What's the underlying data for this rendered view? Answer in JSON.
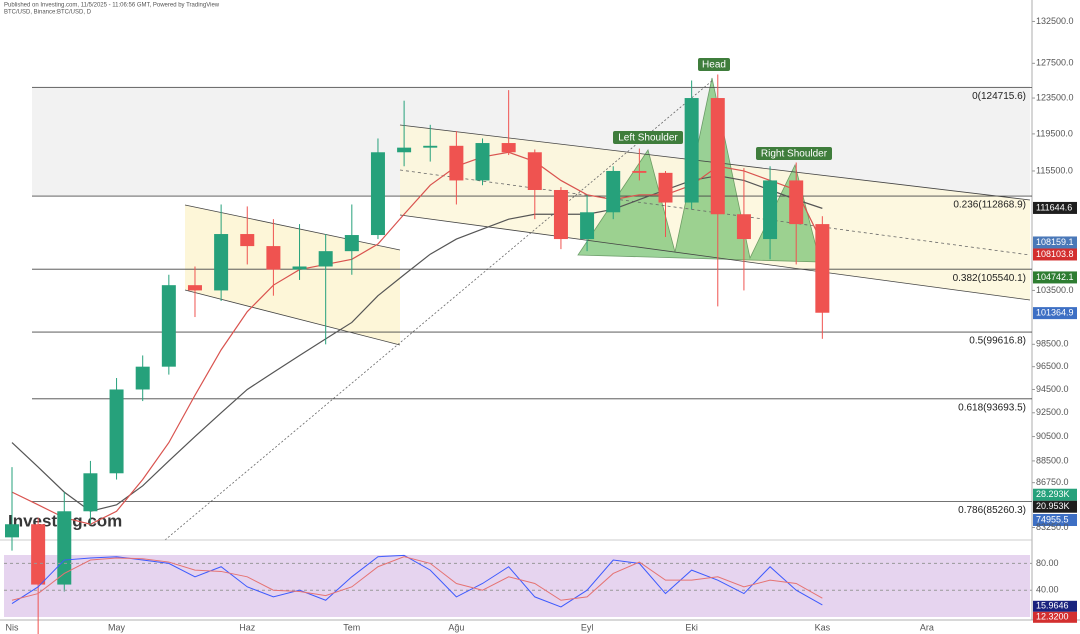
{
  "chart_data": {
    "type": "candlestick",
    "title": "Published on Investing.com, 11/5/2025 - 11:06:56 GMT, Powered by TradingView",
    "subtitle": "BTC/USD, Binance:BTC/USD, D",
    "watermark": "Investing.com",
    "log_scale": true,
    "categories": [
      "Nis",
      null,
      null,
      null,
      "May",
      null,
      null,
      null,
      null,
      "Haz",
      null,
      null,
      null,
      "Tem",
      null,
      null,
      null,
      "Ağu",
      null,
      null,
      null,
      null,
      "Eyl",
      null,
      null,
      null,
      "Eki",
      null,
      null,
      null,
      null,
      "Kas",
      null,
      null,
      null,
      "Ara"
    ],
    "open": [
      82500,
      83500,
      79000,
      84500,
      87500,
      94500,
      96500,
      104000,
      103500,
      109000,
      107800,
      105500,
      105800,
      107300,
      108900,
      117500,
      118000,
      118200,
      114500,
      118500,
      117500,
      113500,
      108500,
      111200,
      115500,
      115300,
      112200,
      123500,
      111000,
      108500,
      114500,
      110000,
      null,
      null,
      null,
      null
    ],
    "high": [
      88000,
      84000,
      86000,
      88500,
      95500,
      97500,
      105000,
      105800,
      112000,
      111800,
      110500,
      110000,
      109000,
      112000,
      119000,
      123200,
      120500,
      119800,
      119000,
      124400,
      117800,
      113800,
      113000,
      116000,
      117900,
      115500,
      125500,
      126200,
      115800,
      116000,
      116400,
      110800,
      null,
      null,
      null,
      null
    ],
    "low": [
      81500,
      74500,
      78500,
      83500,
      87000,
      93500,
      95800,
      101000,
      102500,
      106000,
      103000,
      104500,
      98500,
      105000,
      108500,
      116000,
      116500,
      112000,
      114000,
      117200,
      110500,
      107500,
      107300,
      110500,
      114500,
      108700,
      111500,
      102000,
      103500,
      106500,
      106000,
      99000,
      null,
      null,
      null,
      null
    ],
    "close": [
      83500,
      79000,
      84500,
      87500,
      94500,
      96500,
      104000,
      103500,
      109000,
      107800,
      105500,
      105800,
      107300,
      108900,
      117500,
      118000,
      118200,
      114500,
      118500,
      117500,
      113500,
      108500,
      111200,
      115500,
      115300,
      112200,
      123500,
      111000,
      108500,
      114500,
      110000,
      101400,
      null,
      null,
      null,
      null
    ],
    "up_color": "#26a17b",
    "down_color": "#ef5350",
    "moving_averages": [
      {
        "color": "#555555",
        "values": [
          90000,
          88000,
          86000,
          84500,
          85000,
          86500,
          88500,
          90500,
          92500,
          94500,
          96000,
          97500,
          99000,
          100500,
          103000,
          105000,
          107000,
          108500,
          109500,
          110500,
          111000,
          111000,
          111000,
          111500,
          112500,
          113500,
          114500,
          115000,
          114500,
          113500,
          112500,
          111600,
          null,
          null,
          null,
          null
        ]
      },
      {
        "color": "#d9534f",
        "values": [
          86000,
          85000,
          84000,
          83500,
          84500,
          87000,
          90000,
          94000,
          98000,
          101500,
          104000,
          105500,
          106000,
          106500,
          108000,
          111000,
          114000,
          116000,
          117000,
          117500,
          116500,
          114500,
          113000,
          112500,
          113000,
          113000,
          114000,
          116000,
          115500,
          114500,
          113500,
          108100,
          null,
          null,
          null,
          null
        ]
      }
    ],
    "ylim": [
      82300,
      133900
    ],
    "yticks": [
      {
        "value": 132500,
        "label": "132500.0"
      },
      {
        "value": 127500,
        "label": "127500.0"
      },
      {
        "value": 123500,
        "label": "123500.0"
      },
      {
        "value": 119500,
        "label": "119500.0"
      },
      {
        "value": 115500,
        "label": "115500.0"
      },
      {
        "value": 103500,
        "label": "103500.0"
      },
      {
        "value": 98500,
        "label": "98500.0"
      },
      {
        "value": 96500,
        "label": "96500.0"
      },
      {
        "value": 94500,
        "label": "94500.0"
      },
      {
        "value": 92500,
        "label": "92500.0"
      },
      {
        "value": 90500,
        "label": "90500.0"
      },
      {
        "value": 88500,
        "label": "88500.0"
      },
      {
        "value": 86750,
        "label": "86750.0"
      },
      {
        "value": 83250,
        "label": "83250.0"
      }
    ],
    "fib_levels": [
      {
        "value": 124715.6,
        "label": "0(124715.6)"
      },
      {
        "value": 112868.9,
        "label": "0.236(112868.9)"
      },
      {
        "value": 105540.1,
        "label": "0.382(105540.1)"
      },
      {
        "value": 99616.8,
        "label": "0.5(99616.8)"
      },
      {
        "value": 93693.5,
        "label": "0.618(93693.5)"
      },
      {
        "value": 85260.3,
        "label": "0.786(85260.3)"
      }
    ],
    "price_tags": [
      {
        "value": 111644.6,
        "label": "111644.6",
        "color": "#1e1e1e"
      },
      {
        "value": 108159.1,
        "label": "108159.1",
        "color": "#4a78b8"
      },
      {
        "value": 108103.8,
        "label": "108103.8",
        "color": "#d32f2f"
      },
      {
        "value": 104742.1,
        "label": "104742.1",
        "color": "#2e7d32"
      },
      {
        "value": 101364.9,
        "label": "101364.9",
        "color": "#3d6fc4"
      }
    ],
    "volume_ylim": [
      0,
      50
    ],
    "volume_tags": [
      {
        "value": 28.293,
        "label": "28.293K",
        "color": "#26a17b"
      },
      {
        "value": 20.953,
        "label": "20.953K",
        "color": "#1e1e1e"
      }
    ],
    "extra_tag": "74955.5",
    "annotations": [
      "Head",
      "Left Shoulder",
      "Right Shoulder"
    ],
    "stochastic": {
      "ylim": [
        0,
        100
      ],
      "yticks": [
        {
          "value": 80,
          "label": "80.00"
        },
        {
          "value": 40,
          "label": "40.00"
        }
      ],
      "k": [
        20,
        45,
        85,
        88,
        90,
        85,
        80,
        60,
        75,
        45,
        30,
        40,
        25,
        60,
        90,
        92,
        70,
        30,
        50,
        75,
        30,
        15,
        40,
        85,
        80,
        35,
        70,
        55,
        35,
        75,
        40,
        18,
        null,
        null,
        null,
        null
      ],
      "d": [
        25,
        35,
        65,
        85,
        88,
        87,
        82,
        70,
        68,
        60,
        40,
        38,
        32,
        45,
        75,
        90,
        80,
        50,
        40,
        60,
        50,
        25,
        30,
        65,
        82,
        55,
        55,
        60,
        45,
        55,
        50,
        28,
        null,
        null,
        null,
        null
      ],
      "k_color": "#3d5afe",
      "d_color": "#e57373",
      "tags": [
        {
          "value": 15.9646,
          "label": "15.9646",
          "color": "#1a237e"
        },
        {
          "value": 12.32,
          "label": "12.3200",
          "color": "#d32f2f"
        }
      ]
    }
  }
}
